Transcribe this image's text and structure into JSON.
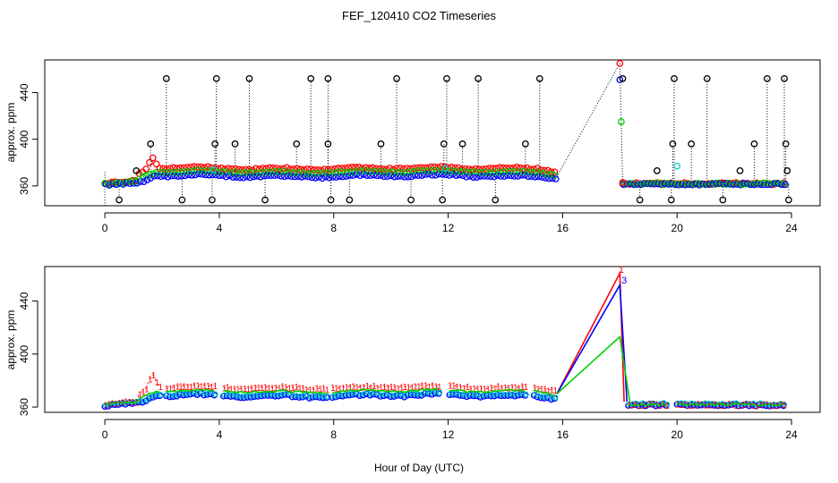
{
  "chart_data": {
    "type": "scatter",
    "title": "FEF_120410  CO2 Timeseries",
    "xlabel": "Hour of Day (UTC)",
    "xlim": [
      -2.1,
      25
    ],
    "x_ticks": [
      0,
      4,
      8,
      12,
      16,
      20,
      24
    ],
    "colors": {
      "s1": "#ff0000",
      "s2": "#00cd00",
      "s3": "#0000ff",
      "s4": "#00cccc",
      "raw": "#000000"
    },
    "panels": [
      {
        "id": "top",
        "type": "scatter",
        "ylabel": "approx. ppm",
        "ylim": [
          343,
          468
        ],
        "y_ticks": [
          360,
          400,
          440
        ],
        "segments": [
          [
            0,
            15.8
          ],
          [
            18.1,
            23.8
          ]
        ],
        "gap_line": {
          "x": [
            15.8,
            18
          ],
          "y": [
            368,
            465
          ]
        },
        "peak_points": [
          {
            "x": 18.0,
            "y": 465,
            "series": "s1"
          },
          {
            "x": 18.0,
            "y": 451,
            "series": "s3"
          },
          {
            "x": 18.1,
            "y": 452,
            "series": "raw"
          },
          {
            "x": 18.05,
            "y": 415,
            "series": "s2"
          },
          {
            "x": 18.1,
            "y": 363,
            "series": "s1"
          }
        ],
        "outliers_high": [
          2.15,
          3.9,
          5.05,
          7.2,
          7.8,
          10.2,
          11.95,
          13.05,
          15.2,
          19.9,
          21.05,
          23.15,
          23.75
        ],
        "outliers_mid": [
          1.6,
          3.85,
          4.55,
          6.7,
          7.8,
          9.65,
          11.85,
          12.5,
          14.7,
          19.85,
          20.5,
          22.7,
          23.8
        ],
        "outliers_low": [
          0.5,
          2.7,
          3.75,
          5.6,
          7.9,
          8.55,
          10.7,
          11.8,
          13.65,
          18.7,
          19.8,
          21.6,
          23.9
        ],
        "outliers_small": [
          {
            "x": 1.1,
            "y": 373
          },
          {
            "x": 19.3,
            "y": 373
          },
          {
            "x": 22.2,
            "y": 373
          },
          {
            "x": 23.85,
            "y": 373
          }
        ],
        "cyan_points": [
          {
            "x": 3.8,
            "y": 374
          },
          {
            "x": 11.9,
            "y": 375
          },
          {
            "x": 20.0,
            "y": 377
          }
        ]
      },
      {
        "id": "bottom",
        "type": "line",
        "ylabel": "approx. ppm",
        "ylim": [
          356,
          466
        ],
        "y_ticks": [
          360,
          400,
          440
        ],
        "segments": [
          [
            0,
            1.95
          ],
          [
            2.15,
            3.85
          ],
          [
            4.15,
            7.8
          ],
          [
            7.95,
            11.75
          ],
          [
            12.05,
            14.8
          ],
          [
            15.0,
            15.8
          ],
          [
            18.3,
            19.7
          ],
          [
            20.0,
            23.8
          ]
        ],
        "peak_lines": [
          {
            "series": "s1",
            "x": [
              15.8,
              18.0,
              18.15
            ],
            "y": [
              370,
              461,
              364
            ]
          },
          {
            "series": "s3",
            "x": [
              15.8,
              18.0,
              18.25
            ],
            "y": [
              370,
              452,
              364
            ]
          },
          {
            "series": "s2",
            "x": [
              15.8,
              18.0,
              18.35
            ],
            "y": [
              370,
              413,
              364
            ]
          }
        ],
        "peak_labels": [
          {
            "text": "1",
            "x": 18.05,
            "y": 464,
            "series": "s1"
          },
          {
            "text": "3",
            "x": 18.15,
            "y": 456,
            "series": "s3"
          }
        ]
      }
    ]
  }
}
